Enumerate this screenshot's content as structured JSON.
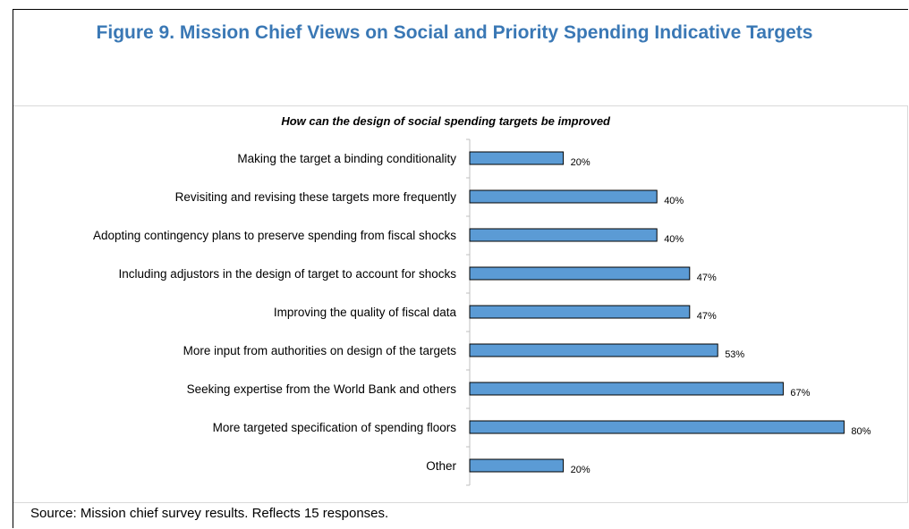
{
  "figure_title": "Figure 9. Mission Chief Views on Social and Priority Spending Indicative Targets",
  "source_note": "Source: Mission chief survey results. Reflects 15 responses.",
  "colors": {
    "title": "#3a78b5",
    "bar_fill": "#5b9bd5",
    "bar_stroke": "#000000"
  },
  "chart_data": {
    "type": "bar",
    "orientation": "horizontal",
    "title": "How can the design of social spending targets be improved",
    "categories": [
      "Making the target a binding conditionality",
      "Revisiting and revising these targets more frequently",
      "Adopting contingency plans to preserve spending from fiscal shocks",
      "Including adjustors in the design of target to account for shocks",
      "Improving the quality of fiscal data",
      "More input from authorities on design of the targets",
      "Seeking expertise from the World Bank and others",
      "More targeted specification of spending floors",
      "Other"
    ],
    "values": [
      20,
      40,
      40,
      47,
      47,
      53,
      67,
      80,
      20
    ],
    "data_labels": [
      "20%",
      "40%",
      "40%",
      "47%",
      "47%",
      "53%",
      "67%",
      "80%",
      "20%"
    ],
    "xlim": [
      0,
      100
    ],
    "grid": false,
    "legend": "none"
  }
}
